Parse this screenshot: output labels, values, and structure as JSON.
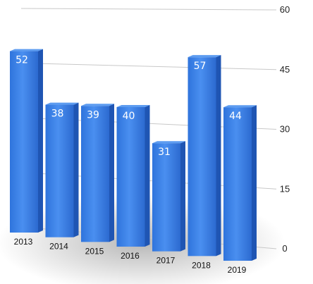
{
  "chart_data": {
    "type": "bar",
    "categories": [
      "2013",
      "2014",
      "2015",
      "2016",
      "2017",
      "2018",
      "2019"
    ],
    "values": [
      52,
      38,
      39,
      40,
      31,
      57,
      44
    ],
    "ylim": [
      0,
      60
    ],
    "yticks": [
      "0",
      "15",
      "30",
      "45",
      "60"
    ],
    "ytick_values": [
      0,
      15,
      30,
      45,
      60
    ],
    "y_axis_side": "right",
    "grid": true,
    "style": "3d-perspective",
    "bar_color": "#3d84e6",
    "bar_side_color": "#1f55b3",
    "bar_top_color": "#5d9cf0",
    "label_color": "#ffffff"
  }
}
